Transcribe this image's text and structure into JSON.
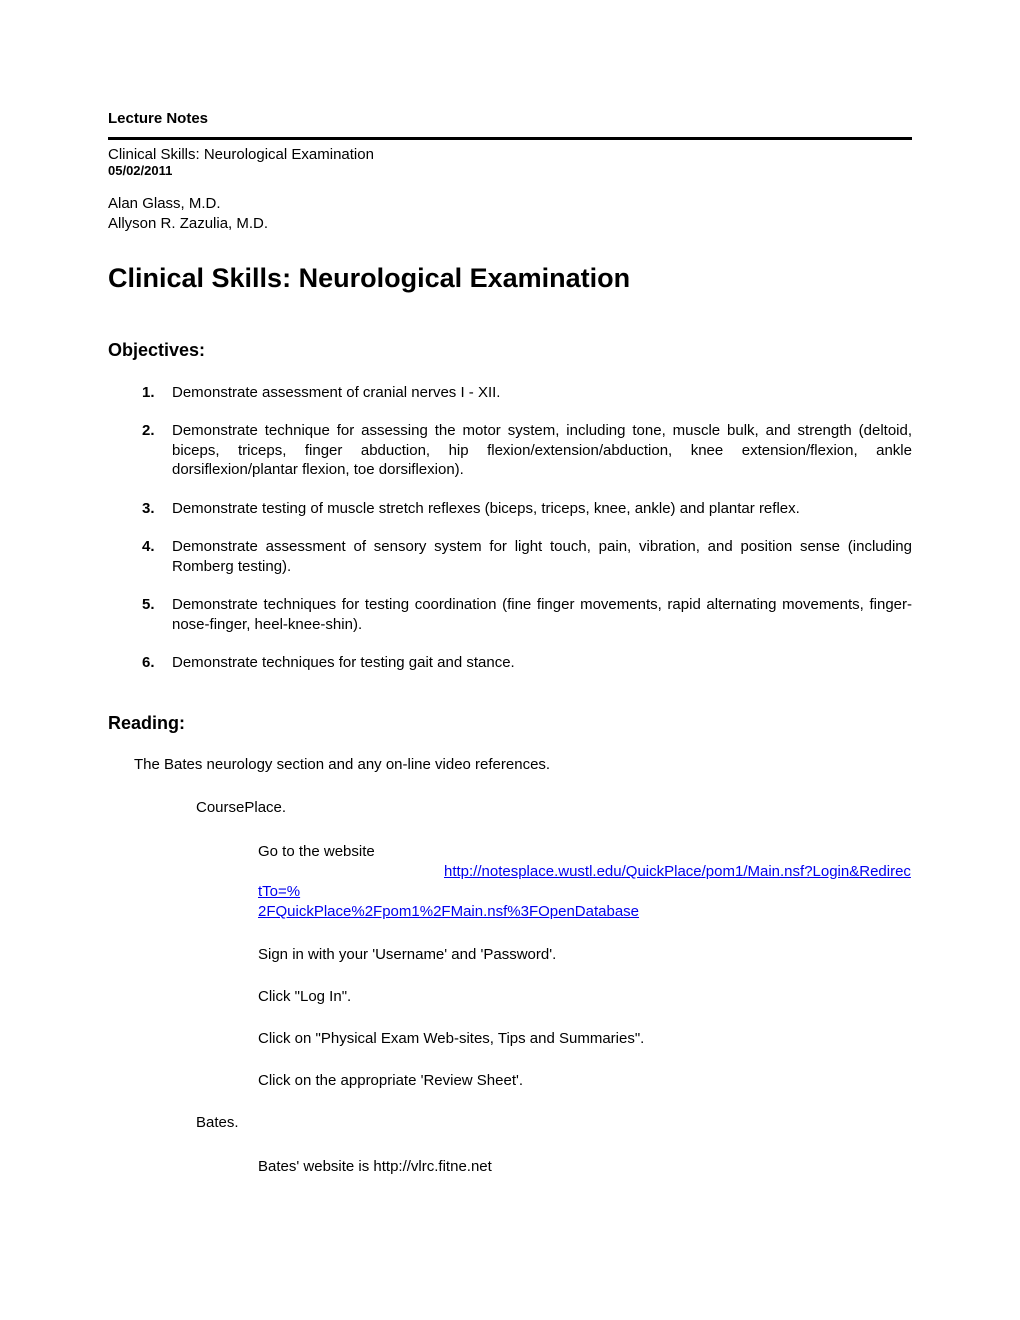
{
  "header": {
    "label": "Lecture Notes",
    "subtitle": "Clinical Skills:  Neurological Examination",
    "date": "05/02/2011",
    "authors": [
      "Alan Glass, M.D.",
      "Allyson R. Zazulia, M.D."
    ]
  },
  "title": "Clinical Skills:  Neurological Examination",
  "objectives": {
    "heading": "Objectives:",
    "items": [
      "Demonstrate assessment of cranial nerves I - XII.",
      "Demonstrate technique for assessing the motor system, including tone, muscle bulk, and strength (deltoid, biceps, triceps, finger abduction, hip flexion/extension/abduction, knee extension/flexion, ankle dorsiflexion/plantar flexion, toe dorsiflexion).",
      "Demonstrate testing of muscle stretch reflexes (biceps, triceps, knee, ankle) and plantar reflex.",
      "Demonstrate assessment of sensory system for light touch, pain, vibration, and position sense (including Romberg testing).",
      "Demonstrate techniques for testing coordination (fine finger movements, rapid alternating movements, finger-nose-finger, heel-knee-shin).",
      "Demonstrate techniques for testing gait and stance."
    ]
  },
  "reading": {
    "heading": "Reading:",
    "intro": "The Bates neurology section and any on-line video references.",
    "courseplace": {
      "label": "CoursePlace.",
      "goto": "Go to the website",
      "url_line1": "http://notesplace.wustl.edu/QuickPlace/pom1/Main.nsf?Login&RedirectTo=%",
      "url_line2": "2FQuickPlace%2Fpom1%2FMain.nsf%3FOpenDatabase",
      "steps": [
        "Sign in with your 'Username' and 'Password'.",
        "Click \"Log In\".",
        "Click on \"Physical Exam Web-sites, Tips and Summaries\".",
        "Click on the appropriate 'Review Sheet'."
      ]
    },
    "bates": {
      "label": "Bates.",
      "text": "Bates' website is http://vlrc.fitne.net"
    }
  },
  "styles": {
    "background_color": "#ffffff",
    "text_color": "#000000",
    "link_color": "#0000ee",
    "title_fontsize": 27,
    "heading_fontsize": 18,
    "body_fontsize": 15,
    "small_fontsize": 13
  }
}
